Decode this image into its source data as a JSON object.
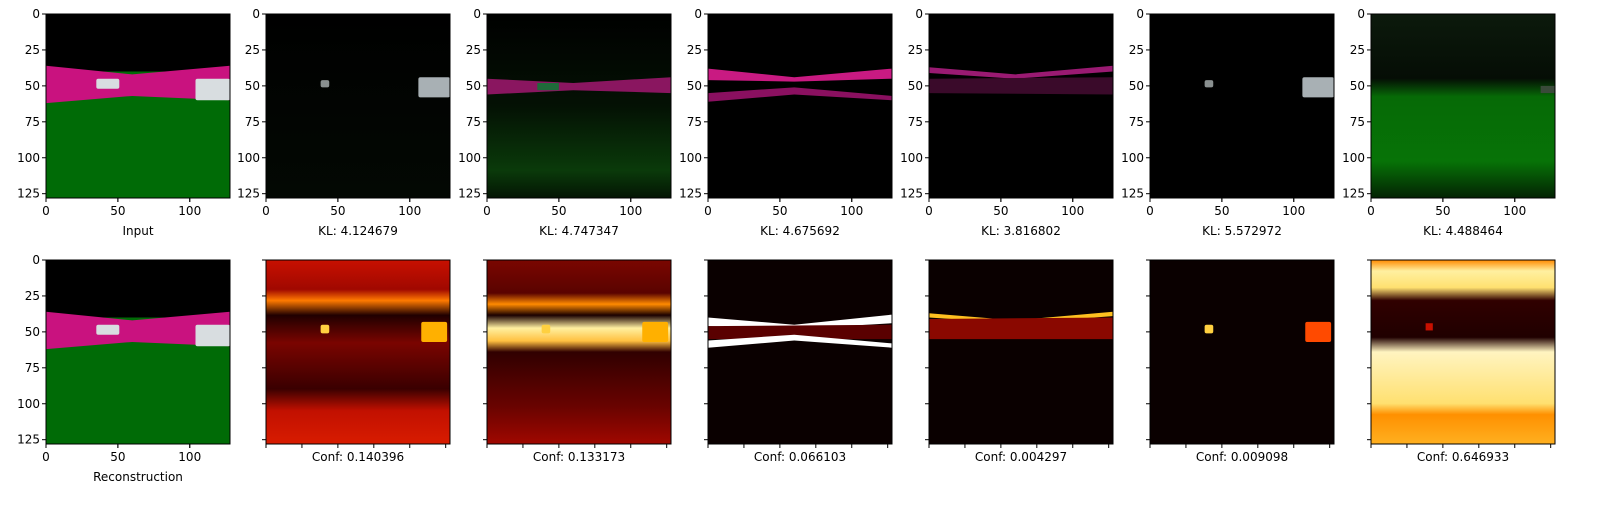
{
  "axis": {
    "ticks": [
      0,
      25,
      50,
      75,
      100,
      125
    ],
    "x_tick_labels": [
      "0",
      "50",
      "100"
    ],
    "y_tick_labels": [
      "0",
      "25",
      "50",
      "75",
      "100",
      "125"
    ],
    "range": [
      0,
      128
    ]
  },
  "top_row": [
    {
      "id": "input",
      "label": "Input"
    },
    {
      "id": "slot-1",
      "label": "KL: 4.124679"
    },
    {
      "id": "slot-2",
      "label": "KL: 4.747347"
    },
    {
      "id": "slot-3",
      "label": "KL: 4.675692"
    },
    {
      "id": "slot-4",
      "label": "KL: 3.816802"
    },
    {
      "id": "slot-5",
      "label": "KL: 5.572972"
    },
    {
      "id": "slot-6",
      "label": "KL: 4.488464"
    }
  ],
  "bottom_row": [
    {
      "id": "reconstruction",
      "label": "Reconstruction"
    },
    {
      "id": "conf-1",
      "label": "Conf: 0.140396"
    },
    {
      "id": "conf-2",
      "label": "Conf: 0.133173"
    },
    {
      "id": "conf-3",
      "label": "Conf: 0.066103"
    },
    {
      "id": "conf-4",
      "label": "Conf: 0.004297"
    },
    {
      "id": "conf-5",
      "label": "Conf: 0.009098"
    },
    {
      "id": "conf-6",
      "label": "Conf: 0.646933"
    }
  ],
  "colors": {
    "sky": "#000000",
    "road": "#c9127f",
    "ground": "#006b06",
    "car": "#d8dde0",
    "heat_low": "#0a0000",
    "heat_mid": "#d21e00",
    "heat_high": "#ffe680"
  }
}
